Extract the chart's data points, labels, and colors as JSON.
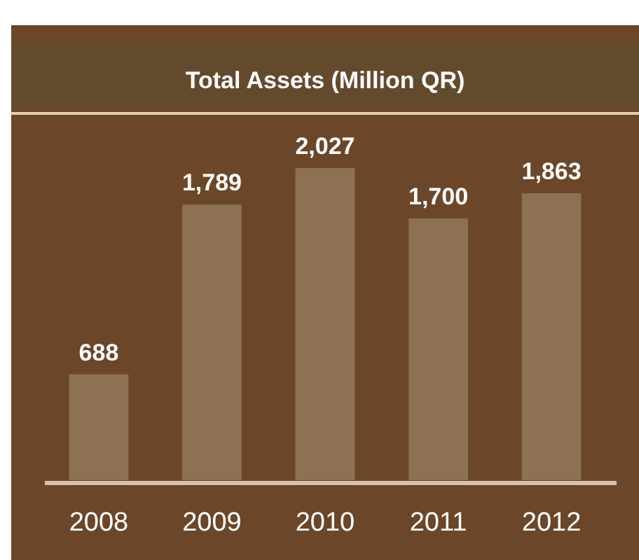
{
  "chart_data": {
    "type": "bar",
    "title": "Total Assets (Million QR)",
    "categories": [
      "2008",
      "2009",
      "2010",
      "2011",
      "2012"
    ],
    "values": [
      688,
      1789,
      2027,
      1700,
      1863
    ],
    "value_labels": [
      "688",
      "1,789",
      "2,027",
      "1,700",
      "1,863"
    ],
    "color": "#8c7152"
  }
}
